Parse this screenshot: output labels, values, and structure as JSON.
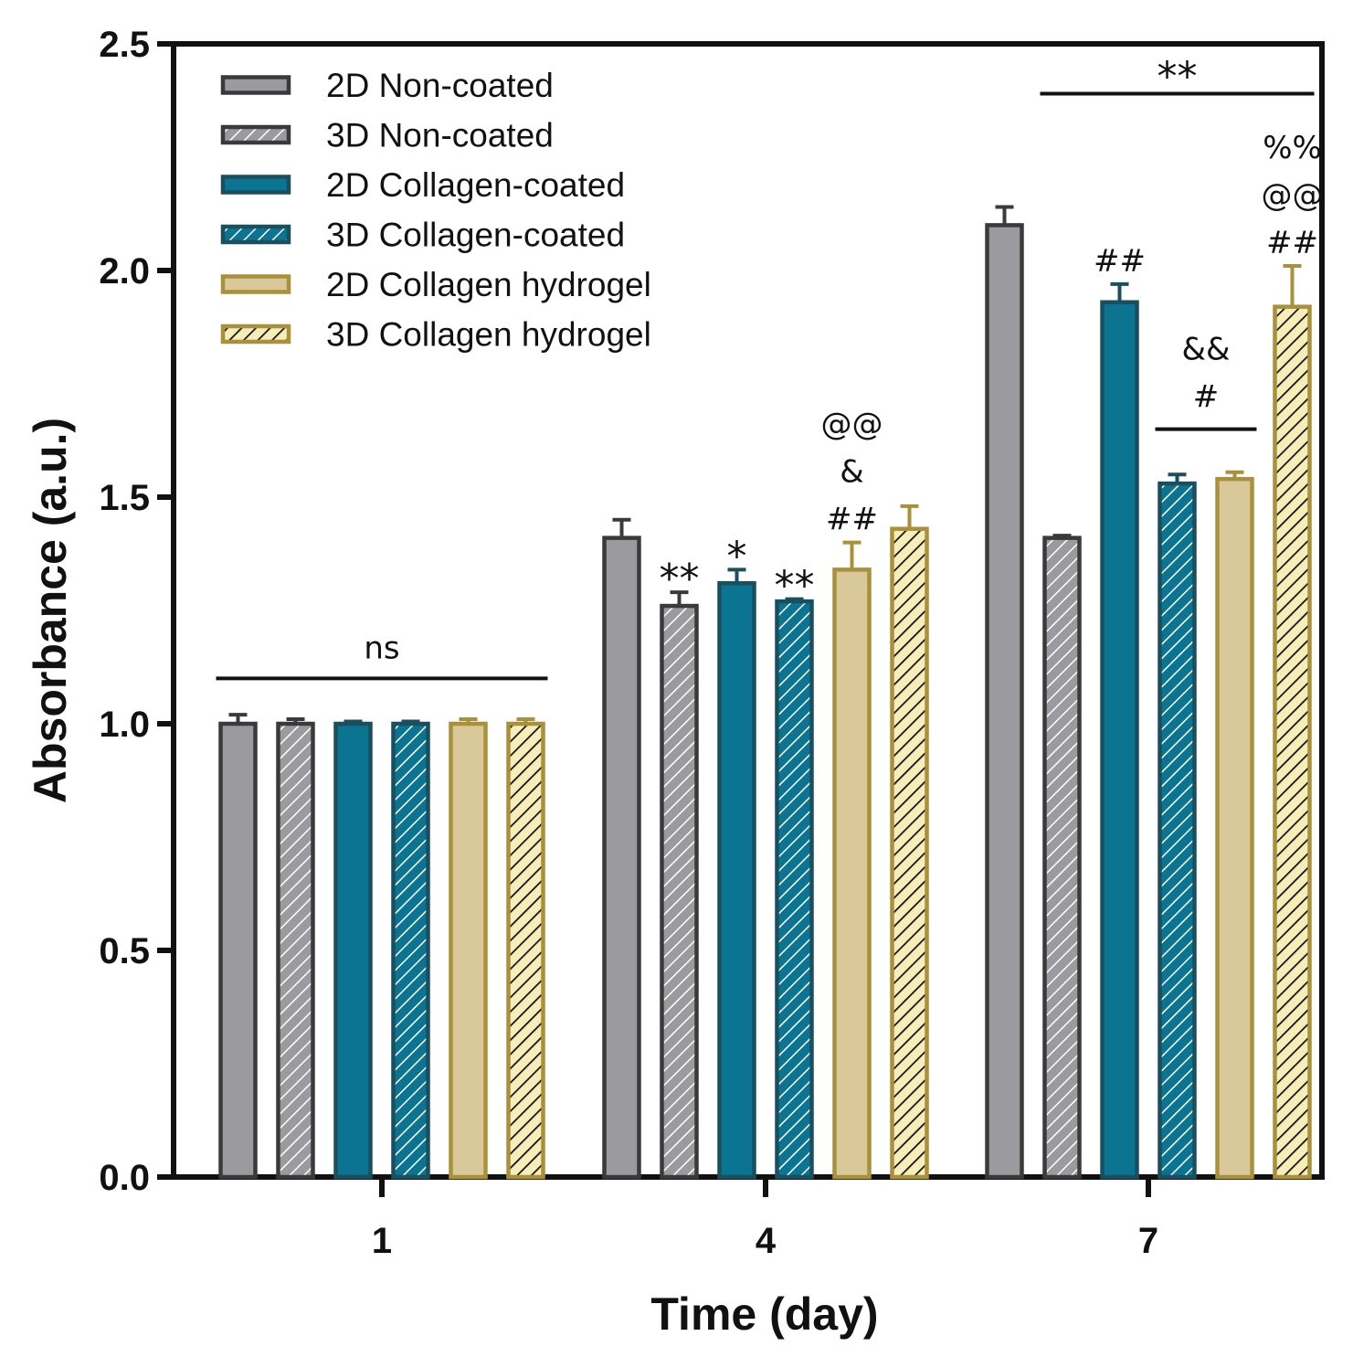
{
  "chart_data": {
    "type": "bar",
    "categories": [
      "1",
      "4",
      "7"
    ],
    "xlabel": "Time (day)",
    "ylabel": "Absorbance (a.u.)",
    "ylim": [
      0,
      2.5
    ],
    "yticks": [
      "0.0",
      "0.5",
      "1.0",
      "1.5",
      "2.0",
      "2.5"
    ],
    "legend_position": "top-left",
    "series": [
      {
        "name": "2D Non-coated",
        "color": "#9b9a9f",
        "stroke": "#3a3a3a",
        "pattern": "none",
        "values": [
          1.0,
          1.41,
          2.1
        ],
        "errors": [
          0.02,
          0.04,
          0.04
        ]
      },
      {
        "name": "3D Non-coated",
        "color": "#9b9a9f",
        "stroke": "#3a3a3a",
        "pattern": "hatch-white",
        "values": [
          1.0,
          1.26,
          1.41
        ],
        "errors": [
          0.01,
          0.03,
          0.005
        ]
      },
      {
        "name": "2D Collagen-coated",
        "color": "#0b7490",
        "stroke": "#1a4f5f",
        "pattern": "none",
        "values": [
          1.0,
          1.31,
          1.93
        ],
        "errors": [
          0.005,
          0.03,
          0.04
        ]
      },
      {
        "name": "3D Collagen-coated",
        "color": "#0b7490",
        "stroke": "#1a4f5f",
        "pattern": "hatch-white",
        "values": [
          1.0,
          1.27,
          1.53
        ],
        "errors": [
          0.005,
          0.005,
          0.02
        ]
      },
      {
        "name": "2D Collagen hydrogel",
        "color": "#d9c99a",
        "stroke": "#a8913a",
        "pattern": "none",
        "values": [
          1.0,
          1.34,
          1.54
        ],
        "errors": [
          0.01,
          0.06,
          0.015
        ]
      },
      {
        "name": "3D Collagen hydrogel",
        "color": "#f7edb8",
        "stroke": "#a8913a",
        "pattern": "hatch-black",
        "values": [
          1.0,
          1.43,
          1.92
        ],
        "errors": [
          0.01,
          0.05,
          0.09
        ]
      }
    ],
    "bar_annotations": [
      {
        "group": 1,
        "series": 1,
        "lines": [
          "**"
        ]
      },
      {
        "group": 1,
        "series": 2,
        "lines": [
          "*"
        ]
      },
      {
        "group": 1,
        "series": 3,
        "lines": [
          "**"
        ]
      },
      {
        "group": 1,
        "series": 4,
        "lines": [
          "@@",
          "&",
          "##"
        ]
      },
      {
        "group": 2,
        "series": 2,
        "lines": [
          "##"
        ]
      },
      {
        "group": 2,
        "series": 5,
        "lines": [
          "%%",
          "@@",
          "##"
        ]
      }
    ],
    "brackets": [
      {
        "label": "ns",
        "y": 1.1,
        "from_group": 0,
        "from_series": 0,
        "to_group": 0,
        "to_series": 5
      },
      {
        "label": "**",
        "y": 2.39,
        "from_group": 2,
        "from_series": 1,
        "to_group": 2,
        "to_series": 5
      },
      {
        "label": "&&\n#",
        "y": 1.65,
        "from_group": 2,
        "from_series": 3,
        "to_group": 2,
        "to_series": 4
      }
    ]
  }
}
